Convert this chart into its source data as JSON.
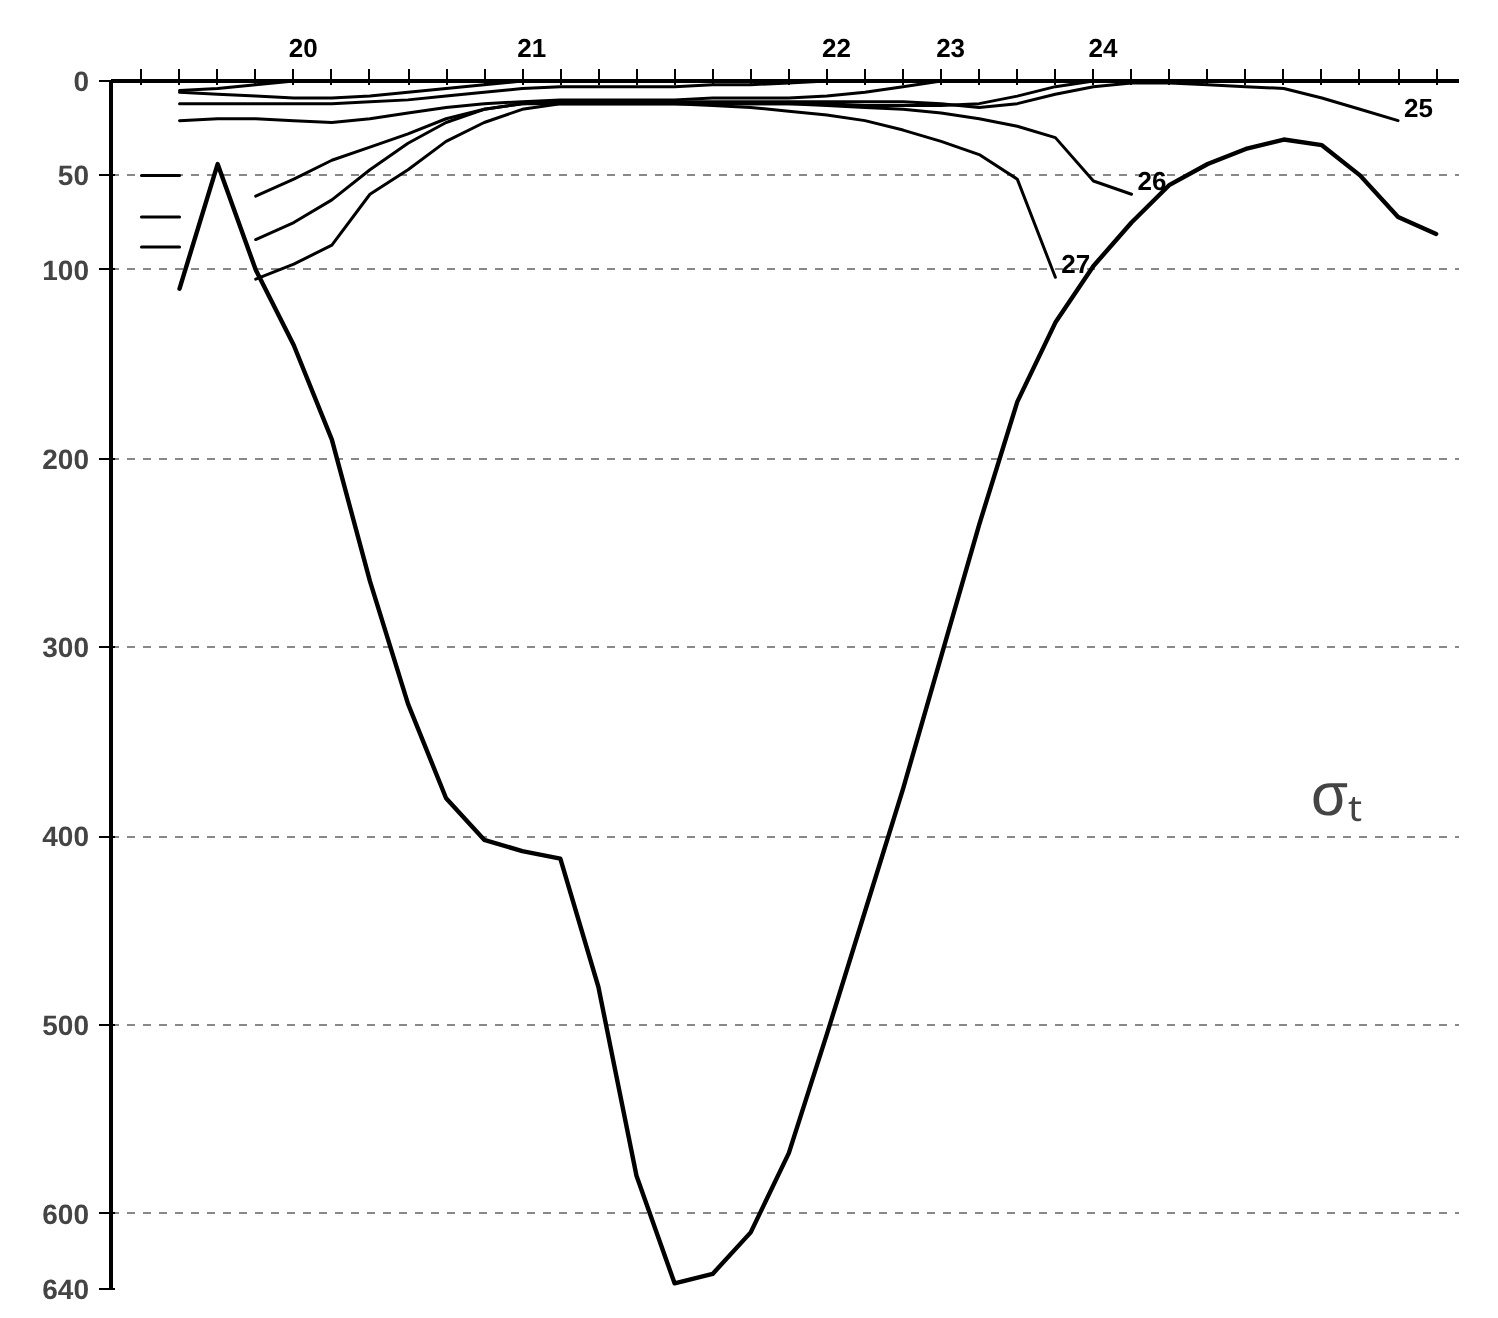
{
  "chart_data": {
    "type": "line",
    "categories": [
      null,
      null,
      null,
      null,
      null,
      null,
      null,
      null,
      null,
      null,
      null,
      null,
      null,
      null,
      null,
      null,
      null,
      null,
      null,
      null,
      null,
      null,
      null,
      null,
      null,
      null,
      null,
      null,
      null,
      null,
      null,
      null,
      null,
      null,
      null
    ],
    "ylim": [
      640,
      0
    ],
    "yticks": [
      0,
      50,
      100,
      200,
      300,
      400,
      500,
      600,
      640
    ],
    "tick_labels": "y",
    "grid": "y",
    "marker": "none",
    "line_style": "solid",
    "annotations": [
      "σₜ"
    ],
    "series": [
      {
        "color": "#000000",
        "values": [
          null,
          110,
          44,
          100,
          140,
          190,
          265,
          330,
          380,
          402,
          408,
          412,
          480,
          580,
          637,
          632,
          610,
          568,
          505,
          440,
          375,
          305,
          235,
          170,
          128,
          98,
          75,
          55,
          44,
          36,
          31,
          34,
          50,
          72,
          81
        ]
      },
      {
        "name": "20",
        "color": "#000000",
        "values": [
          null,
          5,
          4,
          2,
          0,
          null,
          null,
          null,
          null,
          null,
          null,
          null,
          null,
          null,
          null,
          null,
          null,
          null,
          null,
          null,
          null,
          null,
          null,
          null,
          null,
          null,
          null,
          null,
          null,
          null,
          null,
          null,
          null,
          null,
          null
        ]
      },
      {
        "name": "21",
        "color": "#000000",
        "values": [
          null,
          6,
          7,
          8,
          9,
          9,
          8,
          6,
          4,
          2,
          0,
          null,
          null,
          null,
          null,
          null,
          null,
          null,
          null,
          null,
          null,
          null,
          null,
          null,
          null,
          null,
          null,
          null,
          null,
          null,
          null,
          null,
          null,
          null,
          null
        ]
      },
      {
        "name": "22",
        "color": "#000000",
        "values": [
          null,
          12,
          12,
          12,
          12,
          12,
          11,
          10,
          8,
          6,
          4,
          3,
          3,
          3,
          3,
          2,
          2,
          1,
          0,
          null,
          null,
          null,
          null,
          null,
          null,
          null,
          null,
          null,
          null,
          null,
          null,
          null,
          null,
          null,
          null
        ]
      },
      {
        "name": "23",
        "color": "#000000",
        "values": [
          null,
          21,
          20,
          20,
          21,
          22,
          20,
          17,
          14,
          12,
          11,
          10,
          10,
          10,
          10,
          9,
          9,
          9,
          8,
          6,
          3,
          0,
          null,
          null,
          null,
          null,
          null,
          null,
          null,
          null,
          null,
          null,
          null,
          null,
          null
        ]
      },
      {
        "name": "24",
        "color": "#000000",
        "values": [
          null,
          null,
          null,
          null,
          null,
          null,
          null,
          null,
          null,
          null,
          null,
          12,
          12,
          12,
          12,
          12,
          12,
          12,
          12,
          13,
          13,
          13,
          12,
          8,
          3,
          0,
          null,
          null,
          null,
          null,
          null,
          null,
          null,
          null,
          null
        ]
      },
      {
        "name": "25",
        "color": "#000000",
        "values": [
          50,
          50,
          null,
          61,
          52,
          42,
          35,
          28,
          20,
          15,
          12,
          11,
          11,
          11,
          11,
          11,
          11,
          11,
          11,
          11,
          11,
          12,
          14,
          12,
          7,
          3,
          1,
          1,
          2,
          3,
          4,
          9,
          15,
          21,
          null
        ]
      },
      {
        "name": "26",
        "color": "#000000",
        "values": [
          72,
          72,
          null,
          84,
          75,
          63,
          47,
          33,
          22,
          15,
          12,
          12,
          12,
          12,
          12,
          12,
          12,
          12,
          13,
          14,
          15,
          17,
          20,
          24,
          30,
          53,
          60,
          null,
          null,
          null,
          null,
          null,
          null,
          null,
          null
        ]
      },
      {
        "name": "27",
        "color": "#000000",
        "values": [
          88,
          88,
          null,
          105,
          97,
          87,
          60,
          47,
          32,
          22,
          15,
          12,
          12,
          12,
          12,
          13,
          14,
          16,
          18,
          21,
          26,
          32,
          39,
          52,
          104,
          null,
          null,
          null,
          null,
          null,
          null,
          null,
          null,
          null,
          null
        ]
      }
    ]
  }
}
